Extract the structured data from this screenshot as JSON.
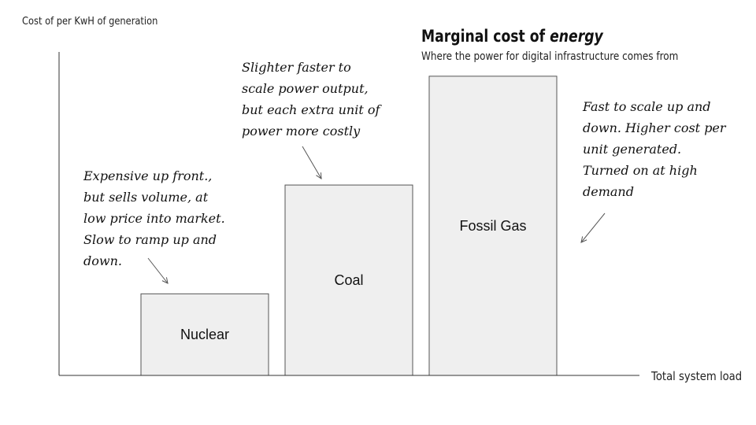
{
  "chart_data": {
    "type": "bar",
    "title_main": "Marginal cost of",
    "title_emphasis": "energy",
    "subtitle": "Where the power for digital infrastructure comes from",
    "ylabel": "Cost of per KwH of generation",
    "xlabel": "Total system load",
    "ylim": [
      0,
      100
    ],
    "categories": [
      "Nuclear",
      "Coal",
      "Fossil Gas"
    ],
    "values": [
      24,
      56,
      88
    ],
    "grid": false,
    "bar_color": "#efefef",
    "bar_stroke": "#555555",
    "annotations": [
      {
        "lines": [
          "Expensive up front.,",
          "but sells volume, at",
          "low price into market.",
          "Slow to ramp up and",
          "down."
        ],
        "target": "Nuclear"
      },
      {
        "lines": [
          "Slighter faster to",
          "scale power output,",
          "but each extra unit of",
          "power more costly"
        ],
        "target": "Coal"
      },
      {
        "lines": [
          "Fast to scale up and",
          "down. Higher cost per",
          "unit generated.",
          "Turned on at high",
          "demand"
        ],
        "target": "Fossil Gas"
      }
    ]
  }
}
